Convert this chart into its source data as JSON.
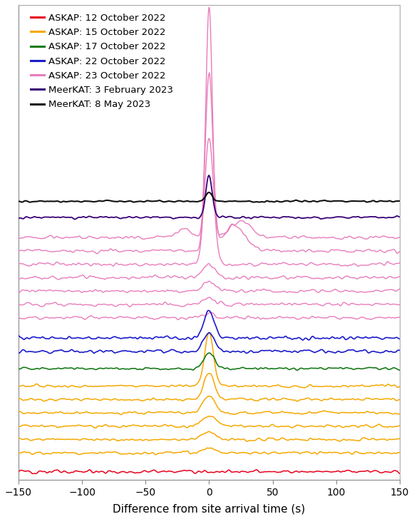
{
  "xlabel": "Difference from site arrival time (s)",
  "xlim": [
    -150,
    150
  ],
  "legend_entries": [
    {
      "label": "ASKAP: 12 October 2022",
      "color": "#e8001c"
    },
    {
      "label": "ASKAP: 15 October 2022",
      "color": "#f5a800"
    },
    {
      "label": "ASKAP: 17 October 2022",
      "color": "#1a7a1a"
    },
    {
      "label": "ASKAP: 22 October 2022",
      "color": "#1a1acc"
    },
    {
      "label": "ASKAP: 23 October 2022",
      "color": "#e87cbb"
    },
    {
      "label": "MeerKAT: 3 February 2023",
      "color": "#380075"
    },
    {
      "label": "MeerKAT: 8 May 2023",
      "color": "#111111"
    }
  ],
  "background_color": "#ffffff"
}
